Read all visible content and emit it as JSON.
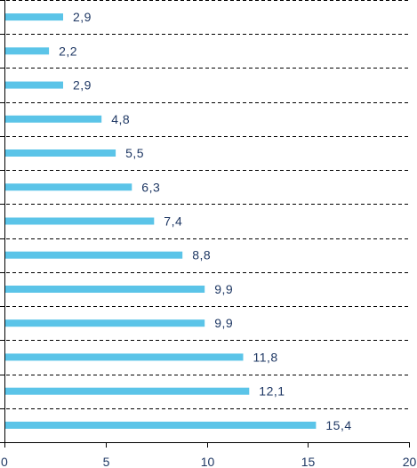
{
  "chart_data": {
    "type": "bar",
    "orientation": "horizontal",
    "values": [
      2.9,
      2.2,
      2.9,
      4.8,
      5.5,
      6.3,
      7.4,
      8.8,
      9.9,
      9.9,
      11.8,
      12.1,
      15.4
    ],
    "value_labels": [
      "2,9",
      "2,2",
      "2,9",
      "4,8",
      "5,5",
      "6,3",
      "7,4",
      "8,8",
      "9,9",
      "9,9",
      "11,8",
      "12,1",
      "15,4"
    ],
    "xlim": [
      0,
      20
    ],
    "xticks": [
      0,
      5,
      10,
      15,
      20
    ],
    "xtick_labels": [
      "0",
      "5",
      "10",
      "15",
      "20"
    ],
    "grid": true,
    "legend": "none",
    "colors": {
      "bar": "#5bc4e8",
      "text": "#1f3864"
    }
  }
}
